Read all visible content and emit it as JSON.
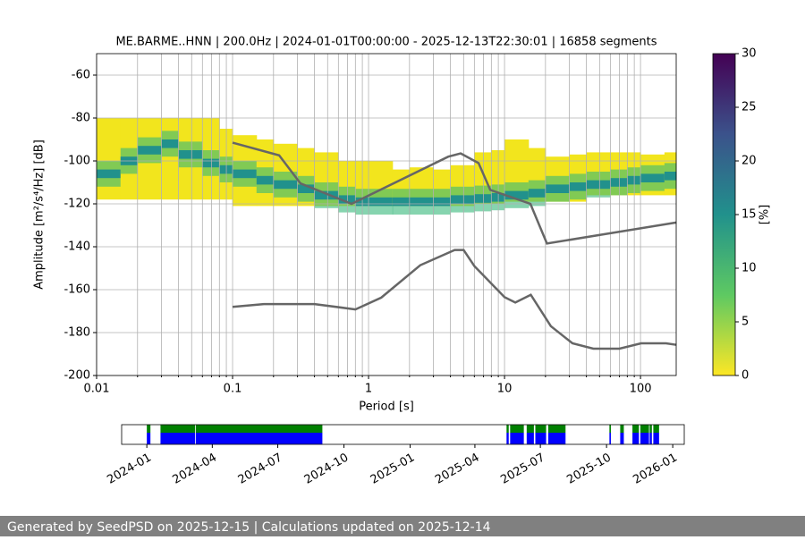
{
  "chart_data": {
    "type": "ppsd",
    "title": "ME.BARME..HNN | 200.0Hz | 2024-01-01T00:00:00 - 2025-12-13T22:30:01 | 16858 segments",
    "xlabel": "Period [s]",
    "ylabel": "Amplitude [m²/s⁴/Hz] [dB]",
    "xscale": "log",
    "grid": true,
    "xlim": [
      0.01,
      183
    ],
    "ylim": [
      -200,
      -50
    ],
    "xticks": [
      0.01,
      0.1,
      1,
      10,
      100
    ],
    "xminorticks": [
      0.02,
      0.03,
      0.04,
      0.05,
      0.06,
      0.07,
      0.08,
      0.09,
      0.2,
      0.3,
      0.4,
      0.5,
      0.6,
      0.7,
      0.8,
      0.9,
      2,
      3,
      4,
      5,
      6,
      7,
      8,
      9,
      20,
      30,
      40,
      50,
      60,
      70,
      80,
      90
    ],
    "yticks": [
      -200,
      -180,
      -160,
      -140,
      -120,
      -100,
      -80,
      -60
    ],
    "period_bins": [
      0.01,
      0.015,
      0.02,
      0.03,
      0.04,
      0.06,
      0.08,
      0.1,
      0.15,
      0.2,
      0.3,
      0.4,
      0.6,
      0.8,
      1,
      1.5,
      2,
      3,
      4,
      6,
      8,
      10,
      15,
      20,
      30,
      40,
      60,
      80,
      100,
      150,
      183
    ],
    "density": {
      "low": [
        -118,
        -118,
        -118,
        -118,
        -118,
        -118,
        -118,
        -121,
        -121,
        -121,
        -121,
        -121,
        -121,
        -121,
        -121,
        -121,
        -121,
        -121,
        -121,
        -120,
        -120,
        -119,
        -119,
        -119,
        -119,
        -116,
        -116,
        -116,
        -116,
        -116
      ],
      "high": [
        -80,
        -80,
        -80,
        -80,
        -80,
        -80,
        -85,
        -88,
        -90,
        -92,
        -94,
        -96,
        -100,
        -100,
        -100,
        -104,
        -103,
        -104,
        -102,
        -96,
        -95,
        -90,
        -94,
        -98,
        -97,
        -96,
        -96,
        -96,
        -97,
        -96
      ],
      "mode": [
        -106,
        -100,
        -95,
        -92,
        -97,
        -101,
        -104,
        -106,
        -109,
        -111,
        -113,
        -116,
        -118,
        -119,
        -119,
        -119,
        -119,
        -119,
        -118,
        -117.5,
        -117,
        -116,
        -115,
        -113,
        -112,
        -111,
        -110,
        -109,
        -108,
        -107
      ],
      "low_color": "#f2e51d",
      "band_color": "#35b779",
      "mode_color": "#21918c"
    },
    "lines": [
      {
        "color": "#666666",
        "x": [
          0.1,
          0.22,
          0.316,
          0.75,
          3.86,
          4.76,
          6.44,
          7.85,
          15.5,
          20.5,
          183
        ],
        "values": [
          -91.5,
          -97.4,
          -110.5,
          -120,
          -98,
          -96.5,
          -101,
          -113.5,
          -120,
          -138.5,
          -128.7
        ]
      },
      {
        "color": "#666666",
        "x": [
          0.1,
          0.17,
          0.4,
          0.8,
          1.24,
          2.4,
          4.3,
          5.0,
          6.0,
          10,
          12,
          15.6,
          21.9,
          31.6,
          45,
          70,
          101,
          154,
          183
        ],
        "values": [
          -168,
          -166.7,
          -166.7,
          -169.2,
          -163.7,
          -148.6,
          -141.5,
          -141.5,
          -149,
          -163.5,
          -166,
          -162.4,
          -177,
          -185,
          -187.5,
          -187.5,
          -185,
          -185,
          -185.7
        ]
      }
    ],
    "colorbar": {
      "label": "[%]",
      "lim": [
        0,
        30
      ],
      "ticks": [
        0,
        5,
        10,
        15,
        20,
        25,
        30
      ]
    }
  },
  "availability": {
    "xlim": [
      "2023-11-27",
      "2026-01-17"
    ],
    "ticks": [
      "2024-01",
      "2024-04",
      "2024-07",
      "2024-10",
      "2025-01",
      "2025-04",
      "2025-07",
      "2025-10",
      "2026-01"
    ],
    "top_color": "#008000",
    "bottom_color": "#0000ff",
    "segments": [
      [
        "2024-01-01",
        "2024-01-06"
      ],
      [
        "2024-01-20",
        "2024-03-08"
      ],
      [
        "2024-03-09",
        "2024-09-01"
      ],
      [
        "2025-05-15",
        "2025-05-18"
      ],
      [
        "2025-05-20",
        "2025-06-08"
      ],
      [
        "2025-06-12",
        "2025-06-22"
      ],
      [
        "2025-06-24",
        "2025-07-09"
      ],
      [
        "2025-07-12",
        "2025-08-05"
      ],
      [
        "2025-10-05",
        "2025-10-07"
      ],
      [
        "2025-10-20",
        "2025-10-25"
      ],
      [
        "2025-11-06",
        "2025-11-15"
      ],
      [
        "2025-11-17",
        "2025-11-29"
      ],
      [
        "2025-11-30",
        "2025-12-03"
      ],
      [
        "2025-12-05",
        "2025-12-13"
      ]
    ]
  },
  "footer": "Generated by SeedPSD on 2025-12-15 | Calculations updated on 2025-12-14"
}
